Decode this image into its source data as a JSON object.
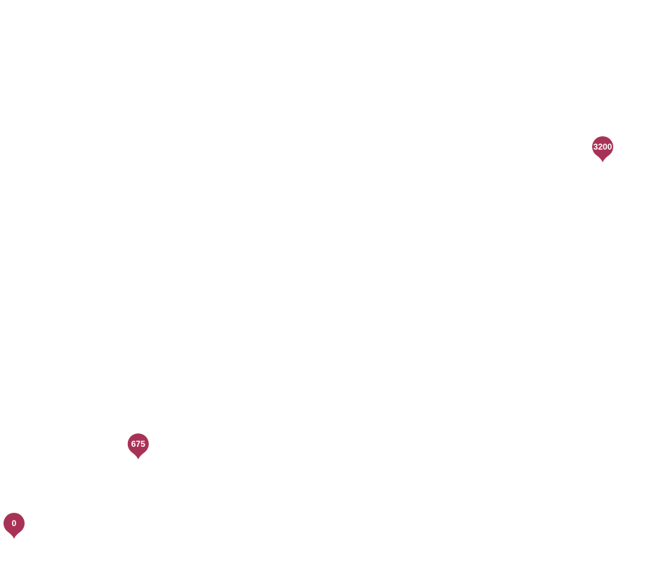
{
  "chart_data": {
    "type": "scatter",
    "marker": "pin",
    "title": "",
    "xlabel": "",
    "ylabel": "",
    "grid": false,
    "axes_visible": false,
    "marker_color": "#a83256",
    "label_color": "#ffffff",
    "points": [
      {
        "label": "0",
        "x": 0,
        "y": 0
      },
      {
        "label": "675",
        "x": 675,
        "y": 675
      },
      {
        "label": "3200",
        "x": 3200,
        "y": 3200
      }
    ]
  }
}
